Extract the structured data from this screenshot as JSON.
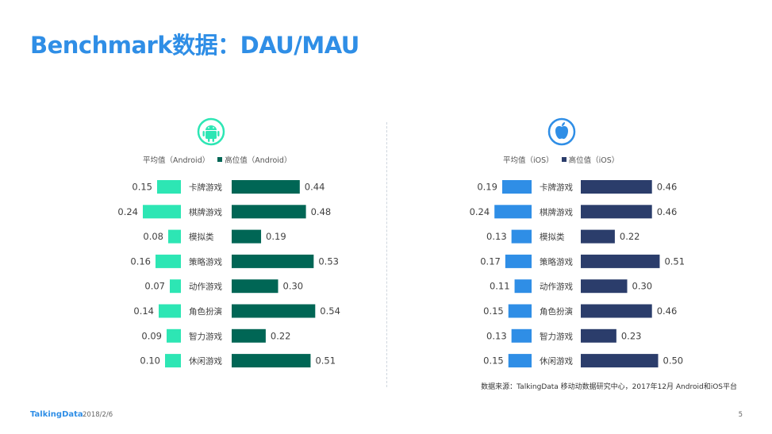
{
  "title": "Benchmark数据：DAU/MAU",
  "source": "数据来源：TalkingData 移动动数据研究中心，2017年12月 Android和iOS平台",
  "footer": {
    "logo": "TalkingData",
    "date": "2018/2/6",
    "page": "5"
  },
  "colors": {
    "android_avg": "#2de6b4",
    "android_high": "#006655",
    "ios_avg": "#2f8ee6",
    "ios_high": "#2b3d6b",
    "title": "#2f8ee6"
  },
  "chart_data": [
    {
      "type": "bar",
      "platform": "Android",
      "platform_icon": "android-icon",
      "categories": [
        "卡牌游戏",
        "棋牌游戏",
        "模拟类",
        "策略游戏",
        "动作游戏",
        "角色扮演",
        "智力游戏",
        "休闲游戏"
      ],
      "series": [
        {
          "name": "平均值（Android）",
          "values": [
            0.15,
            0.24,
            0.08,
            0.16,
            0.07,
            0.14,
            0.09,
            0.1
          ]
        },
        {
          "name": "高位值（Android）",
          "values": [
            0.44,
            0.48,
            0.19,
            0.53,
            0.3,
            0.54,
            0.22,
            0.51
          ]
        }
      ],
      "value_labels_avg": [
        "0.15",
        "0.24",
        "0.08",
        "0.16",
        "0.07",
        "0.14",
        "0.09",
        "0.10"
      ],
      "value_labels_high": [
        "0.44",
        "0.48",
        "0.19",
        "0.53",
        "0.30",
        "0.54",
        "0.22",
        "0.51"
      ],
      "layout": "butterfly",
      "legend": "top"
    },
    {
      "type": "bar",
      "platform": "iOS",
      "platform_icon": "apple-icon",
      "categories": [
        "卡牌游戏",
        "棋牌游戏",
        "模拟类",
        "策略游戏",
        "动作游戏",
        "角色扮演",
        "智力游戏",
        "休闲游戏"
      ],
      "series": [
        {
          "name": "平均值（iOS）",
          "values": [
            0.19,
            0.24,
            0.13,
            0.17,
            0.11,
            0.15,
            0.13,
            0.15
          ]
        },
        {
          "name": "高位值（iOS）",
          "values": [
            0.46,
            0.46,
            0.22,
            0.51,
            0.3,
            0.46,
            0.23,
            0.5
          ]
        }
      ],
      "value_labels_avg": [
        "0.19",
        "0.24",
        "0.13",
        "0.17",
        "0.11",
        "0.15",
        "0.13",
        "0.15"
      ],
      "value_labels_high": [
        "0.46",
        "0.46",
        "0.22",
        "0.51",
        "0.30",
        "0.46",
        "0.23",
        "0.50"
      ],
      "layout": "butterfly",
      "legend": "top"
    }
  ]
}
